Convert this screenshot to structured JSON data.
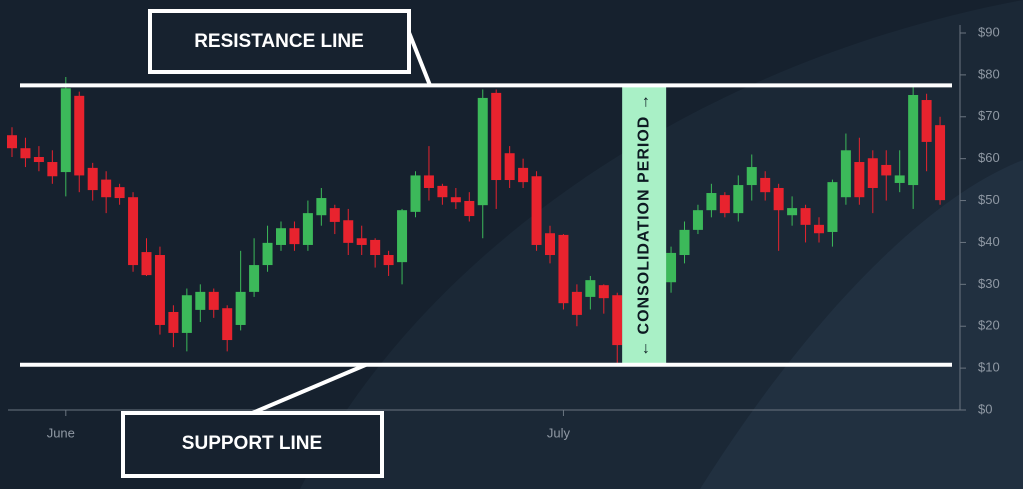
{
  "chart_data": {
    "type": "candlestick",
    "categories": [
      null,
      null,
      null,
      null,
      "June",
      null,
      null,
      null,
      null,
      null,
      null,
      null,
      null,
      null,
      null,
      null,
      null,
      null,
      null,
      null,
      null,
      null,
      null,
      null,
      null,
      null,
      null,
      null,
      null,
      null,
      null,
      null,
      null,
      null,
      null,
      null,
      null,
      null,
      null,
      null,
      null,
      "July",
      null,
      null,
      null,
      null,
      null,
      null,
      null,
      null,
      null,
      null,
      null,
      null,
      null,
      null,
      null,
      null,
      null,
      null,
      null,
      null,
      null,
      null,
      null,
      null,
      null,
      null,
      null,
      null
    ],
    "open": [
      65.6,
      62.5,
      60.4,
      59.2,
      56.8,
      75,
      57.8,
      55,
      53.2,
      50.8,
      37.7,
      37,
      23.4,
      18.4,
      23.9,
      28.2,
      24.3,
      20.3,
      28.2,
      34.6,
      39.4,
      43.4,
      39.4,
      46.5,
      48.2,
      45.3,
      41,
      40.6,
      37,
      35.3,
      47.3,
      56,
      53.5,
      50.8,
      49.9,
      48.9,
      75.7,
      61.3,
      57.8,
      55.8,
      42.2,
      41.8,
      28.2,
      27,
      29.8,
      27.4,
      null,
      null,
      null,
      30.5,
      37,
      43,
      47.7,
      51.3,
      47,
      53.7,
      55.4,
      53,
      46.5,
      48.2,
      44.2,
      42.5,
      50.8,
      59.2,
      60.1,
      58.5,
      54.2,
      53.7,
      74,
      68
    ],
    "high": [
      67.5,
      65,
      63,
      62,
      79.5,
      76,
      59,
      57,
      54,
      52,
      41,
      39,
      25,
      29,
      30,
      29,
      25,
      38,
      41,
      44,
      45,
      45,
      50,
      53,
      49,
      48,
      44,
      41,
      38,
      48,
      57,
      63,
      54,
      53,
      52,
      76.5,
      76.5,
      63,
      60,
      57,
      44,
      42,
      30,
      32,
      30,
      28,
      null,
      null,
      null,
      39,
      45,
      49,
      54,
      52,
      56,
      61,
      57,
      54,
      51,
      49,
      46,
      55,
      66,
      65,
      62,
      62,
      62,
      77.5,
      75.5,
      70
    ],
    "low": [
      60.4,
      58,
      57,
      54,
      51,
      52,
      50,
      47,
      49,
      33,
      32,
      18,
      15,
      14,
      21,
      22,
      14,
      19,
      27,
      33,
      38,
      38,
      38,
      44,
      42,
      37,
      37,
      34,
      32,
      30,
      46,
      50,
      49,
      48,
      45,
      41,
      48,
      53,
      53,
      38,
      35,
      24,
      20,
      24,
      23,
      11,
      null,
      null,
      null,
      28,
      35,
      42,
      46,
      46,
      45,
      50,
      50,
      38,
      44,
      40,
      40,
      39,
      49,
      49,
      47,
      50,
      52,
      48,
      57,
      49
    ],
    "close": [
      62.5,
      60.1,
      59.2,
      55.8,
      76.8,
      56,
      52.5,
      50.8,
      50.6,
      34.6,
      32.2,
      20.3,
      18.4,
      27.4,
      28.2,
      23.9,
      16.7,
      28.2,
      34.6,
      39.9,
      43.4,
      39.6,
      47,
      50.6,
      44.9,
      39.9,
      39.4,
      37,
      34.6,
      47.7,
      56,
      53,
      50.8,
      49.6,
      46.3,
      74.5,
      54.9,
      54.9,
      54.4,
      39.4,
      37,
      25.5,
      22.7,
      31,
      26.7,
      15.5,
      null,
      null,
      null,
      37.5,
      43,
      47.7,
      51.8,
      47,
      53.7,
      58,
      52,
      47.7,
      48.2,
      44.2,
      42.2,
      54.4,
      62,
      50.8,
      53,
      56,
      56,
      75.2,
      64,
      50.1
    ],
    "up_color": "#3cb95a",
    "down_color": "#e8232e",
    "ylim": [
      0,
      90
    ],
    "yticks": [
      {
        "value": 0,
        "label": "$0"
      },
      {
        "value": 10,
        "label": "$10"
      },
      {
        "value": 20,
        "label": "$20"
      },
      {
        "value": 30,
        "label": "$30"
      },
      {
        "value": 40,
        "label": "$40"
      },
      {
        "value": 50,
        "label": "$50"
      },
      {
        "value": 60,
        "label": "$60"
      },
      {
        "value": 70,
        "label": "$70"
      },
      {
        "value": 80,
        "label": "$80"
      },
      {
        "value": 90,
        "label": "$90"
      }
    ],
    "resistance": {
      "label": "RESISTANCE LINE",
      "value": 77.5
    },
    "support": {
      "label": "SUPPORT LINE",
      "value": 10.8
    },
    "consolidation": {
      "label": "← CONSOLIDATION PERIOD →",
      "index": 47
    }
  }
}
